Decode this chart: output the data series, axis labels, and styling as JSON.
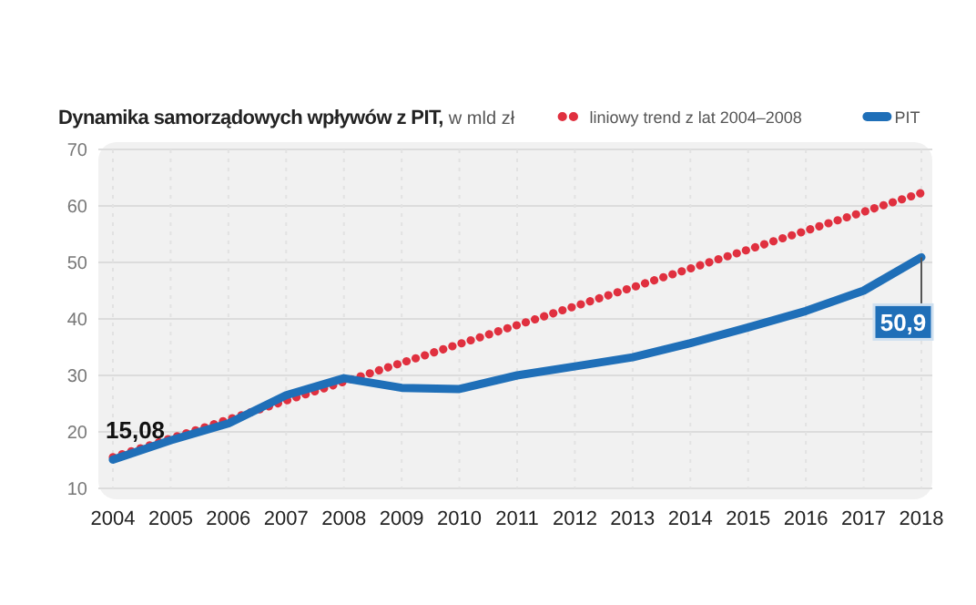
{
  "chart_data": {
    "type": "line",
    "title": "Dynamika samorządowych wpływów z PIT,",
    "subtitle": "w mld zł",
    "x": [
      2004,
      2005,
      2006,
      2007,
      2008,
      2009,
      2010,
      2011,
      2012,
      2013,
      2014,
      2015,
      2016,
      2017,
      2018
    ],
    "series": [
      {
        "name": "liniowy trend z lat 2004–2008",
        "color": "#e0303f",
        "x": [
          2004,
          2018
        ],
        "values": [
          15.5,
          62.3
        ],
        "line_style": "dotted"
      },
      {
        "name": "PIT",
        "color": "#1f6fb8",
        "values": [
          15.08,
          18.5,
          21.5,
          26.5,
          29.5,
          27.8,
          27.6,
          30,
          31.6,
          33.2,
          35.7,
          38.5,
          41.4,
          45,
          50.9
        ],
        "line_style": "solid",
        "value_labels": [
          "15,08",
          null,
          null,
          null,
          null,
          null,
          null,
          null,
          null,
          null,
          null,
          null,
          null,
          null,
          "50,9"
        ]
      }
    ],
    "xlim": [
      2004,
      2018
    ],
    "xticks": [
      2004,
      2005,
      2006,
      2007,
      2008,
      2009,
      2010,
      2011,
      2012,
      2013,
      2014,
      2015,
      2016,
      2017,
      2018
    ],
    "ylim": [
      10,
      70
    ],
    "yticks": [
      10,
      20,
      30,
      40,
      50,
      60,
      70
    ],
    "grid": true,
    "legend": "top right"
  }
}
